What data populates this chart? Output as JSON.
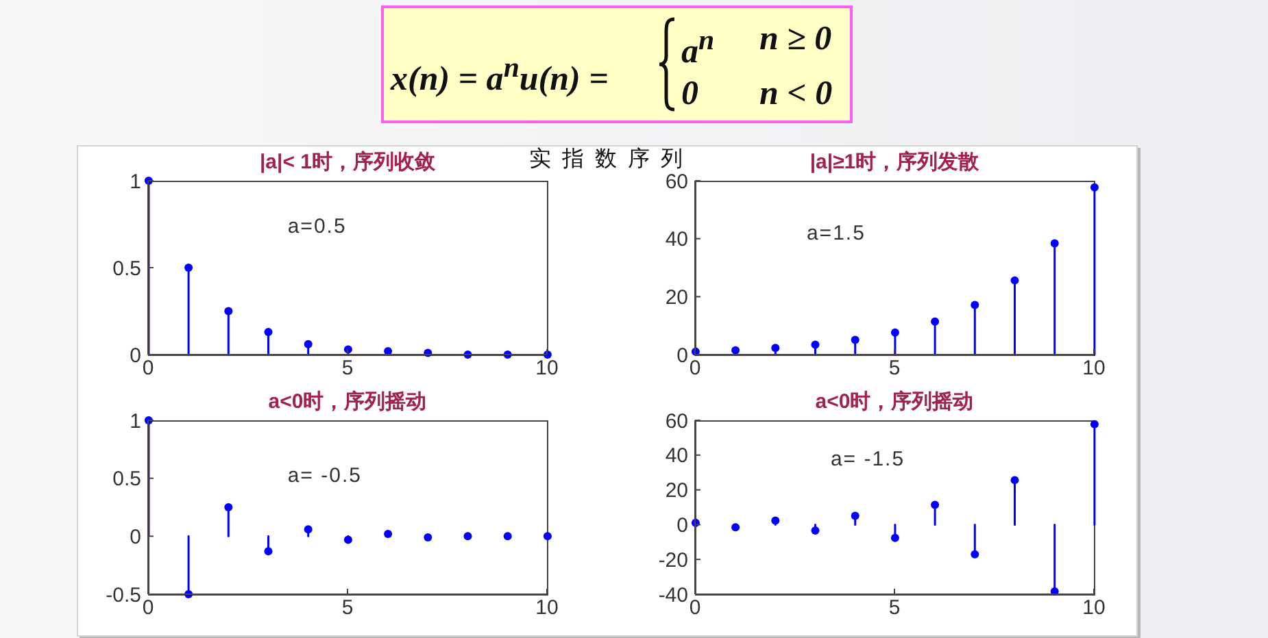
{
  "chart_data": [
    {
      "type": "other",
      "annotations": [
        "x(n) = a$^{n}$u(n) =",
        "a$^{n}$",
        "n ≥ 0",
        "0",
        "n < 0"
      ]
    },
    {
      "type": "lollipop",
      "title": "|a|< 1时，序列收敛",
      "x": [
        0,
        1,
        2,
        3,
        4,
        5,
        6,
        7,
        8,
        9,
        10
      ],
      "values": [
        1,
        0.5,
        0.25,
        0.13,
        0.06,
        0.03,
        0.02,
        0.01,
        0,
        0,
        0
      ],
      "color": "#0000ff",
      "marker": "circle",
      "xlim": [
        0,
        10
      ],
      "xticks": [
        0,
        5,
        10
      ],
      "ylim": [
        0,
        1
      ],
      "yticks": [
        0,
        0.5,
        1
      ],
      "annotations": [
        "a=0.5",
        "实指数序列"
      ]
    },
    {
      "type": "lollipop",
      "title": "|a|≥1时，序列发散",
      "x": [
        0,
        1,
        2,
        3,
        4,
        5,
        6,
        7,
        8,
        9,
        10
      ],
      "values": [
        1,
        1.5,
        2.3,
        3.4,
        5.1,
        7.6,
        11.4,
        17.1,
        25.6,
        38.4,
        57.7
      ],
      "color": "#0000ff",
      "marker": "circle",
      "xlim": [
        0,
        10
      ],
      "xticks": [
        0,
        5,
        10
      ],
      "ylim": [
        0,
        60
      ],
      "yticks": [
        0,
        20,
        40,
        60
      ],
      "annotations": [
        "a=1.5"
      ]
    },
    {
      "type": "lollipop",
      "title": "a<0时，序列摇动",
      "x": [
        0,
        1,
        2,
        3,
        4,
        5,
        6,
        7,
        8,
        9,
        10
      ],
      "values": [
        1,
        -0.5,
        0.25,
        -0.13,
        0.06,
        -0.03,
        0.02,
        -0.01,
        0,
        0,
        0
      ],
      "color": "#0000ff",
      "marker": "circle",
      "xlim": [
        0,
        10
      ],
      "xticks": [
        0,
        5,
        10
      ],
      "ylim": [
        -0.5,
        1
      ],
      "yticks": [
        -0.5,
        0,
        0.5,
        1
      ],
      "annotations": [
        "a= -0.5"
      ]
    },
    {
      "type": "lollipop",
      "title": "a<0时，序列摇动",
      "x": [
        0,
        1,
        2,
        3,
        4,
        5,
        6,
        7,
        8,
        9,
        10
      ],
      "values": [
        1,
        -1.5,
        2.3,
        -3.4,
        5.1,
        -7.6,
        11.4,
        -17.1,
        25.6,
        -38.4,
        57.7
      ],
      "color": "#0000ff",
      "marker": "circle",
      "xlim": [
        0,
        10
      ],
      "xticks": [
        0,
        5,
        10
      ],
      "ylim": [
        -40,
        60
      ],
      "yticks": [
        -40,
        -20,
        0,
        20,
        40,
        60
      ],
      "annotations": [
        "a= -1.5"
      ]
    }
  ]
}
